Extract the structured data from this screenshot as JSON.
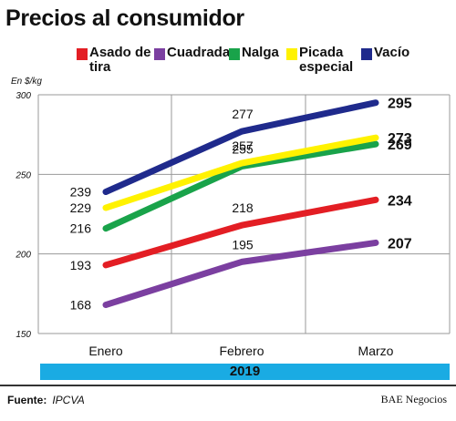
{
  "title": "Precios al consumidor",
  "legend": [
    {
      "label": "Asado de tira",
      "color": "#e31e24"
    },
    {
      "label": "Cuadrada",
      "color": "#7b3fa0"
    },
    {
      "label": "Nalga",
      "color": "#19a34a"
    },
    {
      "label": "Picada especial",
      "color": "#fff200"
    },
    {
      "label": "Vacío",
      "color": "#1f2a8c"
    }
  ],
  "unit_label": "En $/kg",
  "year_label": "2019",
  "source": {
    "label": "Fuente:",
    "value": "IPCVA"
  },
  "brand": "BAE Negocios",
  "chart_data": {
    "type": "line",
    "x": [
      "Enero",
      "Febrero",
      "Marzo"
    ],
    "ylim": [
      150,
      300
    ],
    "yticks": [
      150,
      200,
      250,
      300
    ],
    "grid": true,
    "series": [
      {
        "name": "Vacío",
        "color": "#1f2a8c",
        "values": [
          239,
          277,
          295
        ]
      },
      {
        "name": "Picada especial",
        "color": "#fff200",
        "values": [
          229,
          257,
          273
        ]
      },
      {
        "name": "Nalga",
        "color": "#19a34a",
        "values": [
          216,
          255,
          269
        ]
      },
      {
        "name": "Asado de tira",
        "color": "#e31e24",
        "values": [
          193,
          218,
          234
        ]
      },
      {
        "name": "Cuadrada",
        "color": "#7b3fa0",
        "values": [
          168,
          195,
          207
        ]
      }
    ]
  }
}
